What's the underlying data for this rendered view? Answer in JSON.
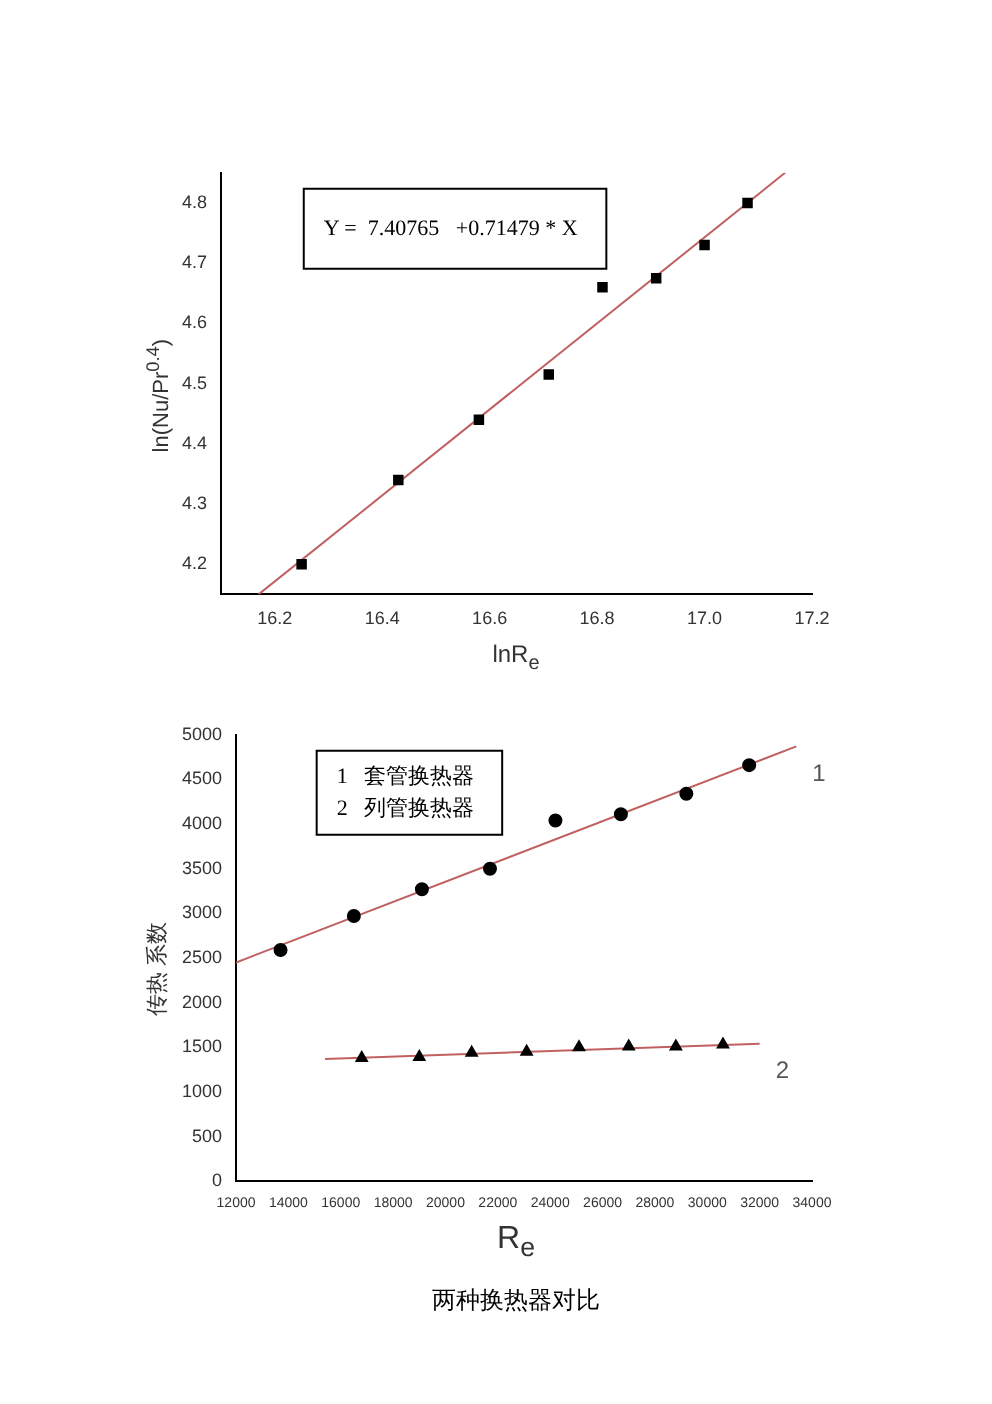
{
  "chart_data": [
    {
      "type": "scatter",
      "xlabel": "lnR$_{e}$",
      "ylabel": "ln(Nu/Pr$^{0.4}$)",
      "xlim": [
        16.1,
        17.2
      ],
      "ylim": [
        4.15,
        4.85
      ],
      "xticks": [
        16.2,
        16.4,
        16.6,
        16.8,
        {
          "value": 17.0,
          "label": "17.0"
        },
        17.2
      ],
      "yticks": [
        4.2,
        4.3,
        4.4,
        4.5,
        4.6,
        4.7,
        4.8
      ],
      "grid": false,
      "legend": false,
      "annotations": [
        "Y =  7.40765   +0.71479 * X"
      ],
      "series": [
        {
          "marker": "square",
          "color": "#000000",
          "x": [
            16.25,
            16.43,
            16.58,
            16.71,
            16.81,
            16.91,
            17.0,
            17.08
          ],
          "values": [
            4.2,
            4.34,
            4.44,
            4.515,
            4.66,
            4.675,
            4.73,
            4.8
          ]
        },
        {
          "type": "line",
          "marker": "none",
          "color": "#c06060",
          "x": [
            16.17,
            17.15
          ],
          "values": [
            4.15,
            4.85
          ]
        }
      ]
    },
    {
      "type": "scatter",
      "title": "两种换热器对比",
      "xlabel": "R$_{e}$",
      "ylabel": "传热 系数",
      "xlim": [
        12000,
        34000
      ],
      "ylim": [
        0,
        5000
      ],
      "xticks": [
        12000,
        14000,
        16000,
        18000,
        20000,
        22000,
        24000,
        26000,
        28000,
        30000,
        32000,
        34000
      ],
      "yticks": [
        0,
        500,
        1000,
        1500,
        2000,
        2500,
        3000,
        3500,
        4000,
        4500,
        5000
      ],
      "grid": false,
      "legend": false,
      "annotations": [
        "1   套管换热器",
        "2   列管换热器"
      ],
      "series": [
        {
          "marker": "circle",
          "color": "#000000",
          "x": [
            13700,
            16500,
            19100,
            21700,
            24200,
            26700,
            29200,
            31600
          ],
          "values": [
            2590,
            2970,
            3270,
            3500,
            4040,
            4110,
            4340,
            4660
          ]
        },
        {
          "type": "line",
          "name": "1",
          "marker": "none",
          "color": "#c06060",
          "x": [
            12000,
            33400
          ],
          "values": [
            2450,
            4870
          ]
        },
        {
          "marker": "triangle",
          "color": "#000000",
          "x": [
            16800,
            19000,
            21000,
            23100,
            25100,
            27000,
            28800,
            30600
          ],
          "values": [
            1380,
            1390,
            1440,
            1450,
            1500,
            1510,
            1510,
            1530
          ]
        },
        {
          "type": "line",
          "name": "2",
          "marker": "none",
          "color": "#c06060",
          "x": [
            15400,
            32000
          ],
          "values": [
            1370,
            1540
          ]
        }
      ]
    }
  ]
}
